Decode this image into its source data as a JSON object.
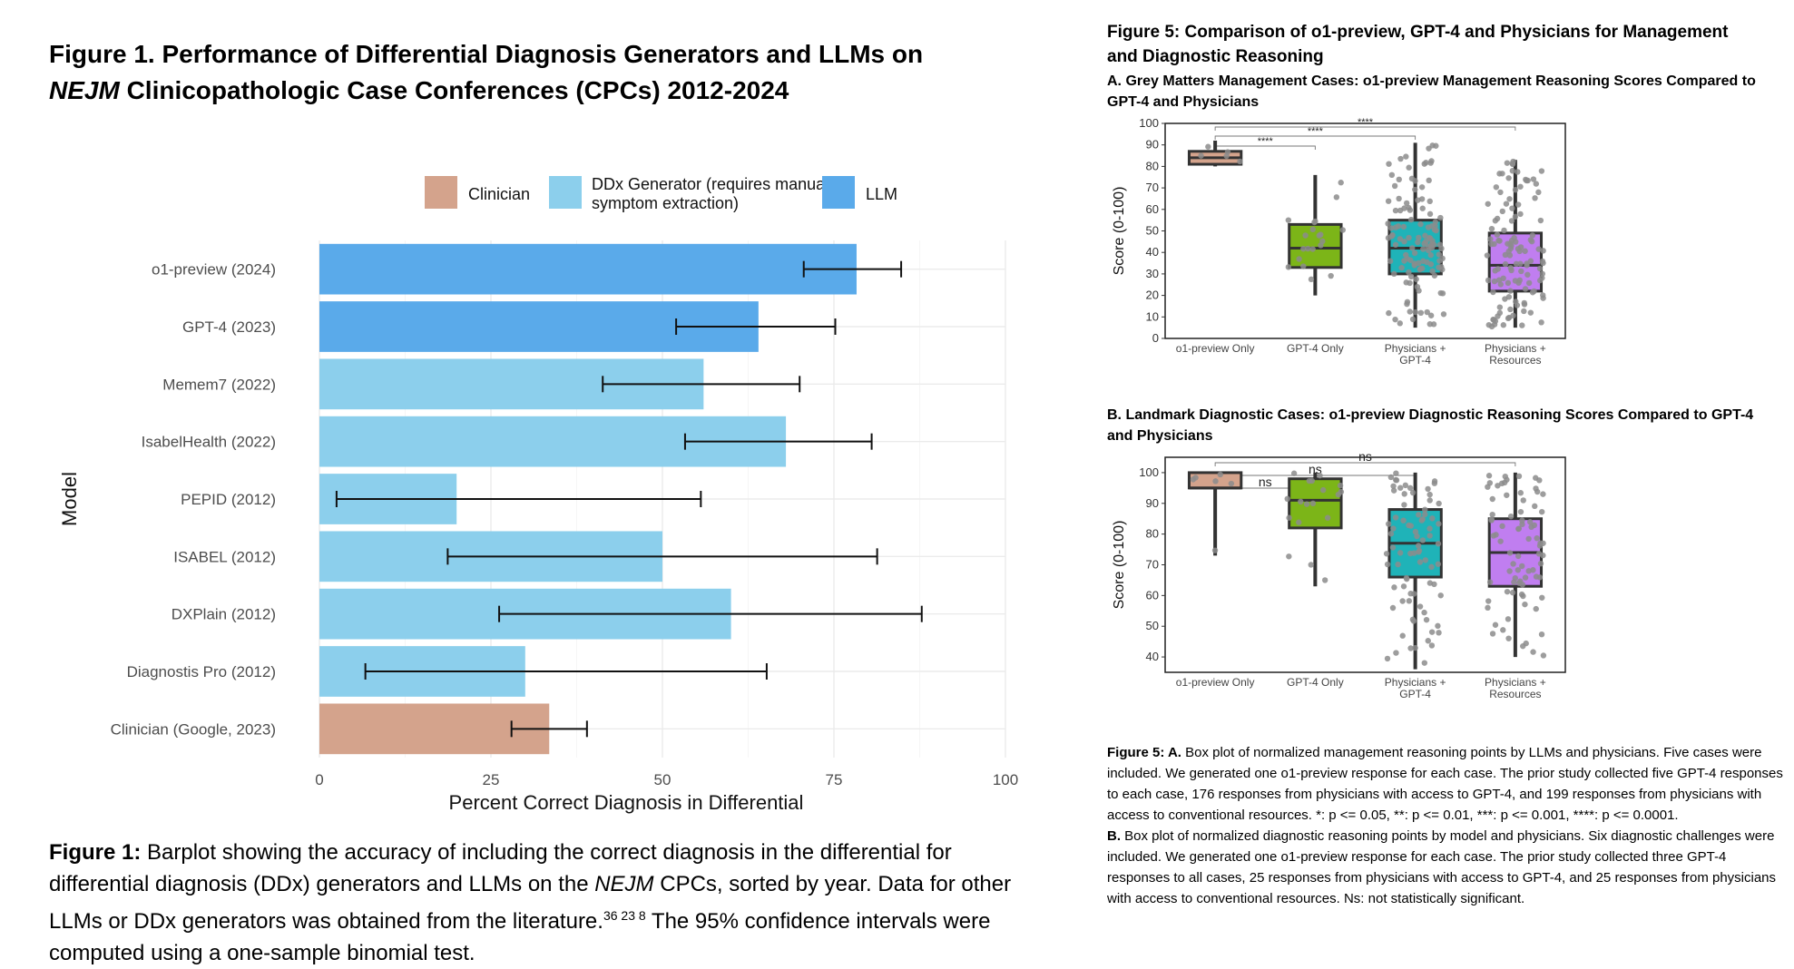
{
  "fig1": {
    "title_line1": "Figure 1. Performance of Differential Diagnosis Generators and LLMs on",
    "title_journal": "NEJM",
    "title_line2_rest": " Clinicopathologic Case Conferences (CPCs) 2012-2024",
    "caption_label": "Figure 1:",
    "caption_part1": " Barplot showing the accuracy of including the correct diagnosis in the differential for differential diagnosis (DDx) generators and LLMs on the ",
    "caption_journal": "NEJM",
    "caption_part2": " CPCs, sorted by year. Data for other LLMs or DDx generators was obtained from the literature.",
    "caption_refs": "36 23 8",
    "caption_part3": " The 95% confidence intervals were computed using a one-sample binomial test."
  },
  "fig5": {
    "title": "Figure 5: Comparison of o1-preview, GPT-4 and Physicians for Management and Diagnostic Reasoning",
    "subtitle_a": "A. Grey Matters Management Cases: o1-preview Management Reasoning Scores Compared to GPT-4 and Physicians",
    "subtitle_b": "B. Landmark Diagnostic Cases: o1-preview Diagnostic Reasoning Scores Compared to GPT-4 and Physicians",
    "caption_label": "Figure 5: A.",
    "caption_a": " Box plot of normalized management reasoning points by LLMs and physicians. Five cases were included. We generated one o1-preview response for each case. The prior study collected five GPT-4 responses to each case, 176 responses from physicians with access to GPT-4, and 199 responses from physicians with access to conventional resources. *: p <= 0.05, **: p <= 0.01, ***: p <= 0.001, ****: p <= 0.0001.",
    "caption_b_label": "B.",
    "caption_b": " Box plot of normalized diagnostic reasoning points by model and physicians. Six diagnostic challenges were included. We generated one o1-preview response for each case. The prior study collected three GPT-4 responses to all cases, 25 responses from physicians with access to GPT-4, and 25 responses from physicians with access to conventional resources. Ns: not statistically significant."
  },
  "colors": {
    "clinician": "#d4a38c",
    "ddx": "#8ccfec",
    "llm": "#5aaaea",
    "gpt4_box": "#7cb518",
    "phys_gpt4_box": "#1fb3b8",
    "phys_res_box": "#c07ef0"
  },
  "chart_data": [
    {
      "type": "bar",
      "orientation": "horizontal",
      "xlabel": "Percent Correct Diagnosis in Differential",
      "ylabel": "Model",
      "xlim": [
        0,
        100
      ],
      "xticks": [
        0,
        25,
        50,
        75,
        100
      ],
      "legend": [
        {
          "name": "Clinician",
          "color": "#d4a38c"
        },
        {
          "name": "DDx Generator (requires manual symptom extraction)",
          "color": "#8ccfec"
        },
        {
          "name": "LLM",
          "color": "#5aaaea"
        }
      ],
      "legend_position": "top",
      "grid": true,
      "bars": [
        {
          "label": "o1-preview (2024)",
          "group": "LLM",
          "value": 78.3,
          "ci": [
            70.6,
            84.8
          ]
        },
        {
          "label": "GPT-4 (2023)",
          "group": "LLM",
          "value": 64.0,
          "ci": [
            52.0,
            75.2
          ]
        },
        {
          "label": "Memem7 (2022)",
          "group": "DDx Generator (requires manual symptom extraction)",
          "value": 56.0,
          "ci": [
            41.3,
            70.0
          ]
        },
        {
          "label": "IsabelHealth (2022)",
          "group": "DDx Generator (requires manual symptom extraction)",
          "value": 68.0,
          "ci": [
            53.3,
            80.5
          ]
        },
        {
          "label": "PEPID (2012)",
          "group": "DDx Generator (requires manual symptom extraction)",
          "value": 20.0,
          "ci": [
            2.5,
            55.6
          ]
        },
        {
          "label": "ISABEL (2012)",
          "group": "DDx Generator (requires manual symptom extraction)",
          "value": 50.0,
          "ci": [
            18.7,
            81.3
          ]
        },
        {
          "label": "DXPlain (2012)",
          "group": "DDx Generator (requires manual symptom extraction)",
          "value": 60.0,
          "ci": [
            26.2,
            87.8
          ]
        },
        {
          "label": "Diagnostis Pro (2012)",
          "group": "DDx Generator (requires manual symptom extraction)",
          "value": 30.0,
          "ci": [
            6.7,
            65.2
          ]
        },
        {
          "label": "Clinician (Google, 2023)",
          "group": "Clinician",
          "value": 33.5,
          "ci": [
            28.0,
            39.0
          ]
        }
      ]
    },
    {
      "type": "box",
      "ylabel": "Score (0-100)",
      "ylim": [
        0,
        100
      ],
      "yticks": [
        0,
        10,
        20,
        30,
        40,
        50,
        60,
        70,
        80,
        90,
        100
      ],
      "categories": [
        "o1-preview Only",
        "GPT-4 Only",
        "Physicians + GPT-4",
        "Physicians + Resources"
      ],
      "boxes": [
        {
          "min": 80,
          "q1": 81,
          "median": 84,
          "q3": 87,
          "max": 92,
          "color": "#d4a38c"
        },
        {
          "min": 20,
          "q1": 33,
          "median": 42,
          "q3": 53,
          "max": 76,
          "color": "#7cb518"
        },
        {
          "min": 5,
          "q1": 30,
          "median": 42,
          "q3": 55,
          "max": 91,
          "color": "#1fb3b8"
        },
        {
          "min": 5,
          "q1": 22,
          "median": 34,
          "q3": 49,
          "max": 83,
          "color": "#c07ef0"
        }
      ],
      "significance": [
        {
          "from": "o1-preview Only",
          "to": "GPT-4 Only",
          "label": "****"
        },
        {
          "from": "o1-preview Only",
          "to": "Physicians + GPT-4",
          "label": "****"
        },
        {
          "from": "o1-preview Only",
          "to": "Physicians + Resources",
          "label": "****"
        }
      ]
    },
    {
      "type": "box",
      "ylabel": "Score (0-100)",
      "ylim": [
        35,
        105
      ],
      "yticks": [
        40,
        50,
        60,
        70,
        80,
        90,
        100
      ],
      "categories": [
        "o1-preview Only",
        "GPT-4 Only",
        "Physicians + GPT-4",
        "Physicians + Resources"
      ],
      "boxes": [
        {
          "min": 73,
          "q1": 95,
          "median": 95,
          "q3": 100,
          "max": 100,
          "color": "#d4a38c"
        },
        {
          "min": 63,
          "q1": 82,
          "median": 91,
          "q3": 98,
          "max": 100,
          "color": "#7cb518"
        },
        {
          "min": 36,
          "q1": 66,
          "median": 77,
          "q3": 88,
          "max": 100,
          "color": "#1fb3b8"
        },
        {
          "min": 40,
          "q1": 63,
          "median": 74,
          "q3": 85,
          "max": 100,
          "color": "#c07ef0"
        }
      ],
      "significance": [
        {
          "from": "o1-preview Only",
          "to": "GPT-4 Only",
          "label": "ns"
        },
        {
          "from": "o1-preview Only",
          "to": "Physicians + GPT-4",
          "label": "ns"
        },
        {
          "from": "o1-preview Only",
          "to": "Physicians + Resources",
          "label": "ns"
        }
      ]
    }
  ]
}
